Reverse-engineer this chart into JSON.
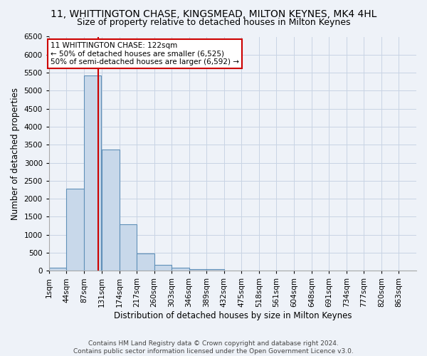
{
  "title1": "11, WHITTINGTON CHASE, KINGSMEAD, MILTON KEYNES, MK4 4HL",
  "title2": "Size of property relative to detached houses in Milton Keynes",
  "xlabel": "Distribution of detached houses by size in Milton Keynes",
  "ylabel": "Number of detached properties",
  "footnote": "Contains HM Land Registry data © Crown copyright and database right 2024.\nContains public sector information licensed under the Open Government Licence v3.0.",
  "bin_edges": [
    1,
    44,
    87,
    131,
    174,
    217,
    260,
    303,
    346,
    389,
    432,
    475,
    518,
    561,
    604,
    648,
    691,
    734,
    777,
    820,
    863,
    906
  ],
  "bar_heights": [
    75,
    2275,
    5425,
    3375,
    1300,
    475,
    160,
    75,
    50,
    50,
    0,
    0,
    0,
    0,
    0,
    0,
    0,
    0,
    0,
    0,
    0
  ],
  "bar_color": "#c8d8ea",
  "bar_edge_color": "#6090b8",
  "property_sqm": 122,
  "red_line_color": "#cc0000",
  "annotation_text": "11 WHITTINGTON CHASE: 122sqm\n← 50% of detached houses are smaller (6,525)\n50% of semi-detached houses are larger (6,592) →",
  "annotation_box_color": "#ffffff",
  "annotation_box_edge_color": "#cc0000",
  "ylim": [
    0,
    6500
  ],
  "yticks": [
    0,
    500,
    1000,
    1500,
    2000,
    2500,
    3000,
    3500,
    4000,
    4500,
    5000,
    5500,
    6000,
    6500
  ],
  "grid_color": "#c8d4e4",
  "background_color": "#eef2f8",
  "title1_fontsize": 10,
  "title2_fontsize": 9,
  "axis_label_fontsize": 8.5,
  "tick_fontsize": 7.5,
  "footnote_fontsize": 6.5
}
